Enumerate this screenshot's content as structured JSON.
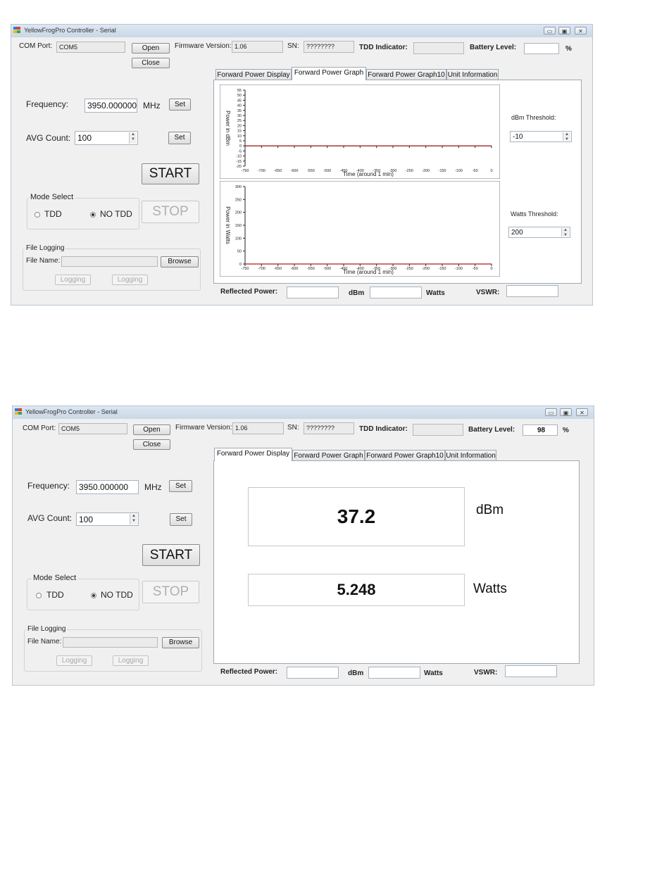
{
  "window_controls": {
    "minimize": "▭",
    "maximize": "▣",
    "close": "✕"
  },
  "windows": [
    {
      "title": "YellowFrogPro Controller - Serial",
      "com_port_label": "COM Port:",
      "com_port_value": "COM5",
      "open_label": "Open",
      "close_label": "Close",
      "firmware_label": "Firmware Version:",
      "firmware_value": "1.06",
      "sn_label": "SN:",
      "sn_value": "????????",
      "tdd_indicator_label": "TDD Indicator:",
      "tdd_indicator_value": "",
      "battery_label": "Battery Level:",
      "battery_value": "",
      "battery_unit": "%",
      "frequency_label": "Frequency:",
      "frequency_value": "3950.000000",
      "frequency_unit": "MHz",
      "set_label": "Set",
      "avg_count_label": "AVG Count:",
      "avg_count_value": "100",
      "start_label": "START",
      "stop_label": "STOP",
      "mode_select_label": "Mode Select",
      "mode_tdd_label": "TDD",
      "mode_notdd_label": "NO TDD",
      "mode_selected": "NO TDD",
      "file_logging_label": "File Logging",
      "file_name_label": "File Name:",
      "file_name_value": "",
      "browse_label": "Browse",
      "logging_label_1": "Logging",
      "logging_label_2": "Logging",
      "tabs": [
        "Forward Power Display",
        "Forward Power Graph",
        "Forward Power Graph10",
        "Unit Information"
      ],
      "active_tab": "Forward Power Graph",
      "dbm_threshold_label": "dBm Threshold:",
      "dbm_threshold_value": "-10",
      "watts_threshold_label": "Watts Threshold:",
      "watts_threshold_value": "200",
      "reflected_power_label": "Reflected Power:",
      "reflected_dbm_value": "",
      "dbm_label": "dBm",
      "reflected_watts_value": "",
      "watts_label": "Watts",
      "vswr_label": "VSWR:",
      "vswr_value": ""
    },
    {
      "title": "YellowFrogPro Controller - Serial",
      "com_port_label": "COM Port:",
      "com_port_value": "COM5",
      "open_label": "Open",
      "close_label": "Close",
      "firmware_label": "Firmware Version:",
      "firmware_value": "1.06",
      "sn_label": "SN:",
      "sn_value": "????????",
      "tdd_indicator_label": "TDD Indicator:",
      "tdd_indicator_value": "",
      "battery_label": "Battery Level:",
      "battery_value": "98",
      "battery_unit": "%",
      "frequency_label": "Frequency:",
      "frequency_value": "3950.000000",
      "frequency_unit": "MHz",
      "set_label": "Set",
      "avg_count_label": "AVG Count:",
      "avg_count_value": "100",
      "start_label": "START",
      "stop_label": "STOP",
      "mode_select_label": "Mode Select",
      "mode_tdd_label": "TDD",
      "mode_notdd_label": "NO TDD",
      "mode_selected": "NO TDD",
      "file_logging_label": "File Logging",
      "file_name_label": "File Name:",
      "file_name_value": "",
      "browse_label": "Browse",
      "logging_label_1": "Logging",
      "logging_label_2": "Logging",
      "tabs": [
        "Forward Power Display",
        "Forward Power Graph",
        "Forward Power Graph10",
        "Unit Information"
      ],
      "active_tab": "Forward Power Display",
      "display_dbm_value": "37.2",
      "display_dbm_unit": "dBm",
      "display_watts_value": "5.248",
      "display_watts_unit": "Watts",
      "reflected_power_label": "Reflected Power:",
      "reflected_dbm_value": "",
      "dbm_label": "dBm",
      "reflected_watts_value": "",
      "watts_label": "Watts",
      "vswr_label": "VSWR:",
      "vswr_value": ""
    }
  ],
  "chart_data": [
    {
      "type": "line",
      "title": "",
      "xlabel": "Time (around 1 min)",
      "ylabel": "Power in dBm",
      "xlim": [
        -750,
        0
      ],
      "ylim": [
        -20,
        55
      ],
      "xticks": [
        -750,
        -700,
        -650,
        -600,
        -550,
        -500,
        -450,
        -400,
        -350,
        -300,
        -250,
        -200,
        -150,
        -100,
        -50,
        0
      ],
      "yticks": [
        -20,
        -15,
        -10,
        -5,
        0,
        5,
        10,
        15,
        20,
        25,
        30,
        35,
        40,
        45,
        50,
        55
      ],
      "series": [
        {
          "x": [
            -750,
            0
          ],
          "y": [
            0,
            0
          ],
          "color": "#b01818"
        }
      ],
      "grid": false
    },
    {
      "type": "line",
      "title": "",
      "xlabel": "Time (around 1 min)",
      "ylabel": "Power in Watts",
      "xlim": [
        -750,
        0
      ],
      "ylim": [
        0,
        300
      ],
      "xticks": [
        -750,
        -700,
        -650,
        -600,
        -550,
        -500,
        -450,
        -400,
        -350,
        -300,
        -250,
        -200,
        -150,
        -100,
        -50,
        0
      ],
      "yticks": [
        0,
        50,
        100,
        150,
        200,
        250,
        300
      ],
      "series": [
        {
          "x": [
            -750,
            0
          ],
          "y": [
            0,
            0
          ],
          "color": "#b01818"
        }
      ],
      "grid": false
    }
  ]
}
